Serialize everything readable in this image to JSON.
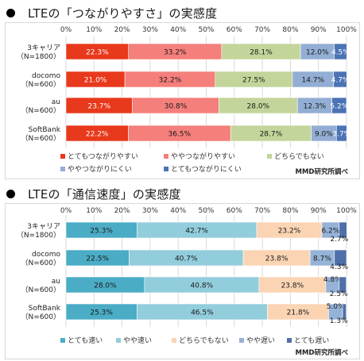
{
  "chart_data": [
    {
      "type": "bar",
      "orientation": "horizontal",
      "stacked": true,
      "percent": true,
      "title": "LTEの「つながりやすさ」の実感度",
      "categories": [
        "3キャリア\n（N=1800）",
        "docomo\n（N=600）",
        "au\n（N=600）",
        "SoftBank\n（N=600）"
      ],
      "x_ticks": [
        "0%",
        "10%",
        "20%",
        "30%",
        "40%",
        "50%",
        "60%",
        "70%",
        "80%",
        "90%",
        "100%"
      ],
      "xlim": [
        0,
        100
      ],
      "grid": true,
      "legend_position": "bottom",
      "source": "MMD研究所調べ",
      "series": [
        {
          "name": "とてもつながりやすい",
          "color": "#e8391c",
          "values": [
            22.3,
            21.0,
            23.7,
            22.2
          ],
          "labels": [
            "22.3%",
            "21.0%",
            "23.7%",
            "22.2%"
          ]
        },
        {
          "name": "ややつながりやすい",
          "color": "#f47f7b",
          "values": [
            33.2,
            32.2,
            30.8,
            36.5
          ],
          "labels": [
            "33.2%",
            "32.2%",
            "30.8%",
            "36.5%"
          ]
        },
        {
          "name": "どちらでもない",
          "color": "#c3d59a",
          "values": [
            28.1,
            27.5,
            28.0,
            28.7
          ],
          "labels": [
            "28.1%",
            "27.5%",
            "28.0%",
            "28.7%"
          ]
        },
        {
          "name": "ややつながりにくい",
          "color": "#93aed4",
          "values": [
            12.0,
            14.7,
            12.3,
            9.0
          ],
          "labels": [
            "12.0%",
            "14.7%",
            "12.3%",
            "9.0%"
          ]
        },
        {
          "name": "とてもつながりにくい",
          "color": "#4b74b5",
          "values": [
            4.5,
            4.7,
            5.2,
            3.7
          ],
          "labels": [
            "4.5%",
            "4.7%",
            "5.2%",
            "3.7%"
          ]
        }
      ]
    },
    {
      "type": "bar",
      "orientation": "horizontal",
      "stacked": true,
      "percent": true,
      "title": "LTEの「通信速度」の実感度",
      "categories": [
        "3キャリア\n（N=1800）",
        "docomo\n（N=600）",
        "au\n（N=600）",
        "SoftBank\n（N=600）"
      ],
      "x_ticks": [
        "0%",
        "10%",
        "20%",
        "30%",
        "40%",
        "50%",
        "60%",
        "70%",
        "80%",
        "90%",
        "100%"
      ],
      "xlim": [
        0,
        100
      ],
      "grid": true,
      "legend_position": "bottom",
      "source": "MMD研究所調べ",
      "series": [
        {
          "name": "とても速い",
          "color": "#4bacc6",
          "values": [
            25.3,
            22.5,
            28.0,
            25.3
          ],
          "labels": [
            "25.3%",
            "22.5%",
            "28.0%",
            "25.3%"
          ]
        },
        {
          "name": "やや速い",
          "color": "#92cddc",
          "values": [
            42.7,
            40.7,
            40.8,
            46.5
          ],
          "labels": [
            "42.7%",
            "40.7%",
            "40.8%",
            "46.5%"
          ]
        },
        {
          "name": "どちらでもない",
          "color": "#fbd4b4",
          "values": [
            23.2,
            23.8,
            23.8,
            21.8
          ],
          "labels": [
            "23.2%",
            "23.8%",
            "23.8%",
            "21.8%"
          ]
        },
        {
          "name": "やや遅い",
          "color": "#95b3d7",
          "values": [
            6.2,
            8.7,
            4.8,
            5.0
          ],
          "labels": [
            "6.2%",
            "8.7%",
            "4.8%",
            "5.0%"
          ]
        },
        {
          "name": "とても遅い",
          "color": "#4f6fa8",
          "values": [
            2.7,
            4.3,
            2.5,
            1.3
          ],
          "labels": [
            "2.7%",
            "4.3%",
            "2.5%",
            "1.3%"
          ]
        }
      ]
    }
  ]
}
